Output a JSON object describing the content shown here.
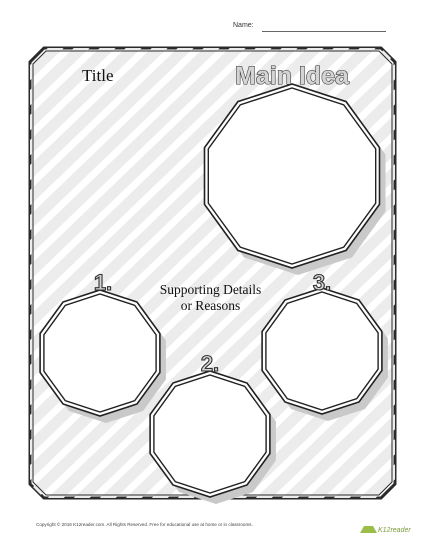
{
  "header": {
    "name_label": "Name:"
  },
  "organizer": {
    "title": "Title",
    "main_idea": "Main Idea",
    "supporting_line1": "Supporting Details",
    "supporting_line2": "or Reasons",
    "numbers": [
      "1.",
      "2.",
      "3."
    ]
  },
  "footer": {
    "copyright": "Copyright © 2016  K12reader.com. All Rights Reserved. Free for educational use at home or in classrooms.",
    "logo": "K12reader"
  }
}
